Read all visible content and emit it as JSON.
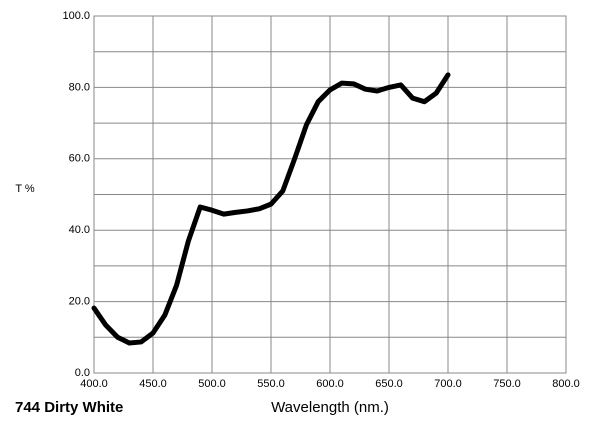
{
  "chart_data": {
    "type": "line",
    "title": "744 Dirty White",
    "xlabel": "Wavelength (nm.)",
    "ylabel": "T %",
    "x": [
      400,
      410,
      420,
      430,
      440,
      450,
      460,
      470,
      480,
      490,
      500,
      510,
      520,
      530,
      540,
      550,
      560,
      570,
      580,
      590,
      600,
      610,
      620,
      630,
      640,
      650,
      660,
      670,
      680,
      690,
      700
    ],
    "series": [
      {
        "color": "#000000",
        "values": [
          18.2,
          13.4,
          10,
          8.4,
          8.7,
          11.2,
          16.2,
          24.6,
          37,
          46.5,
          45.6,
          44.5,
          45,
          45.4,
          46,
          47.3,
          51,
          60,
          69.5,
          76,
          79.3,
          81.2,
          81,
          79.5,
          79,
          80,
          80.7,
          77,
          76,
          78.4,
          83.5
        ]
      }
    ],
    "xlim": [
      400,
      800
    ],
    "xticks": [
      {
        "value": 400,
        "label": "400.0"
      },
      {
        "value": 450,
        "label": "450.0"
      },
      {
        "value": 500,
        "label": "500.0"
      },
      {
        "value": 550,
        "label": "550.0"
      },
      {
        "value": 600,
        "label": "600.0"
      },
      {
        "value": 650,
        "label": "650.0"
      },
      {
        "value": 700,
        "label": "700.0"
      },
      {
        "value": 750,
        "label": "750.0"
      },
      {
        "value": 800,
        "label": "800.0"
      }
    ],
    "ylim": [
      0,
      100
    ],
    "yticks": [
      {
        "value": 0,
        "label": "0.0"
      },
      {
        "value": 20,
        "label": "20.0"
      },
      {
        "value": 40,
        "label": "40.0"
      },
      {
        "value": 60,
        "label": "60.0"
      },
      {
        "value": 80,
        "label": "80.0"
      },
      {
        "value": 100,
        "label": "100.0"
      }
    ],
    "yminorticks": [
      10,
      30,
      50,
      70,
      90
    ],
    "grid": true
  }
}
